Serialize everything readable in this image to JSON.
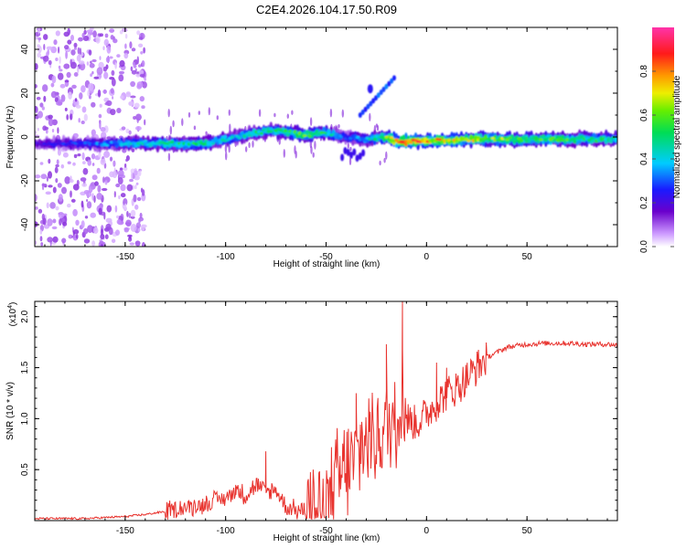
{
  "title": "C2E4.2026.104.17.50.R09",
  "chart_data": [
    {
      "type": "heatmap",
      "xlabel": "Height of straight line (km)",
      "ylabel": "Frequency (Hz)",
      "xlim": [
        -195,
        95
      ],
      "ylim": [
        -50,
        50
      ],
      "xticks": [
        "-150",
        "-100",
        "-50",
        "0",
        "50"
      ],
      "yticks": [
        "-40",
        "-20",
        "0",
        "20",
        "40"
      ],
      "colorbar": {
        "label": "Normalized spectral amplitude",
        "range": [
          0,
          1
        ],
        "ticks": [
          "0.0",
          "0.2",
          "0.4",
          "0.6",
          "0.8"
        ]
      },
      "ridge": {
        "x": [
          -195,
          -170,
          -150,
          -130,
          -110,
          -95,
          -85,
          -75,
          -60,
          -50,
          -40,
          -30,
          -20,
          -15,
          -10,
          0,
          20,
          50,
          95
        ],
        "freq": [
          -3,
          -3,
          -3,
          -3,
          -3,
          0,
          2,
          3,
          1,
          2,
          0,
          -1,
          0,
          -2,
          -2,
          -2,
          -1,
          -1,
          -1
        ],
        "peak_amplitude": [
          0.2,
          0.3,
          0.4,
          0.5,
          0.5,
          0.4,
          0.5,
          0.5,
          0.6,
          0.5,
          0.3,
          0.4,
          0.6,
          0.8,
          0.9,
          0.8,
          0.7,
          0.6,
          0.5
        ]
      },
      "noisy_region_xlim": [
        -195,
        -140
      ]
    },
    {
      "type": "line",
      "xlabel": "Height of straight line (km)",
      "ylabel": "SNR (10 * v/v)",
      "yscale_label": "(x10",
      "yscale_exponent": "4",
      "xlim": [
        -195,
        95
      ],
      "ylim": [
        0,
        2.15
      ],
      "xticks": [
        "-150",
        "-100",
        "-50",
        "0",
        "50"
      ],
      "yticks": [
        "0.5",
        "1.0",
        "1.5",
        "2.0"
      ],
      "series": [
        {
          "name": "SNR",
          "color": "#e8332e",
          "x": [
            -195,
            -170,
            -150,
            -140,
            -130,
            -120,
            -110,
            -105,
            -100,
            -95,
            -90,
            -85,
            -80,
            -75,
            -70,
            -65,
            -60,
            -55,
            -50,
            -45,
            -40,
            -35,
            -30,
            -25,
            -20,
            -15,
            -12,
            -10,
            -5,
            0,
            5,
            10,
            15,
            20,
            25,
            30,
            40,
            50,
            60,
            70,
            80,
            90,
            95
          ],
          "y": [
            0.02,
            0.02,
            0.04,
            0.06,
            0.09,
            0.13,
            0.16,
            0.2,
            0.22,
            0.3,
            0.25,
            0.35,
            0.28,
            0.3,
            0.14,
            0.1,
            0.1,
            0.12,
            0.2,
            0.35,
            0.5,
            0.6,
            0.8,
            0.85,
            0.9,
            1.0,
            1.3,
            1.0,
            0.95,
            1.05,
            1.15,
            1.25,
            1.3,
            1.4,
            1.5,
            1.6,
            1.7,
            1.73,
            1.74,
            1.74,
            1.73,
            1.73,
            1.72
          ]
        }
      ]
    }
  ]
}
